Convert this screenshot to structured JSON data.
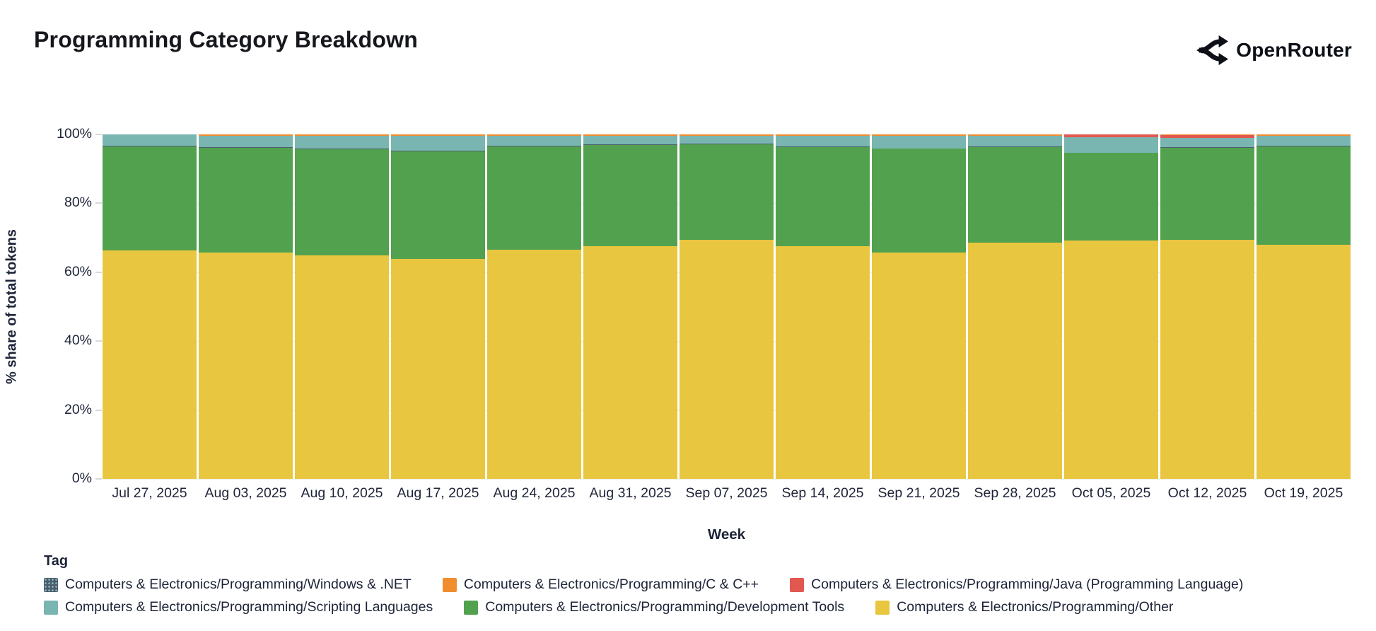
{
  "header": {
    "title": "Programming Category Breakdown",
    "logo_text": "OpenRouter"
  },
  "colors": {
    "title_text": "#15171c",
    "axis_text": "#1e2438",
    "other_yellow": "#e9c63f",
    "dev_tools_green": "#52a14e",
    "scripting_teal": "#79b6b1",
    "java_red": "#e25750",
    "c_cpp_orange": "#f28d2d",
    "windows_slate": "#4e5c6e"
  },
  "legend": {
    "title": "Tag",
    "items": [
      {
        "label": "Computers & Electronics/Programming/Windows & .NET",
        "color": "#4e5c6e",
        "pattern": "dots"
      },
      {
        "label": "Computers & Electronics/Programming/C & C++",
        "color": "#f28d2d"
      },
      {
        "label": "Computers & Electronics/Programming/Java (Programming Language)",
        "color": "#e25750"
      },
      {
        "label": "Computers & Electronics/Programming/Scripting Languages",
        "color": "#79b6b1"
      },
      {
        "label": "Computers & Electronics/Programming/Development Tools",
        "color": "#52a14e"
      },
      {
        "label": "Computers & Electronics/Programming/Other",
        "color": "#e9c63f"
      }
    ]
  },
  "chart_data": {
    "type": "bar",
    "variant": "100pct-stacked",
    "title": "Programming Category Breakdown",
    "xlabel": "Week",
    "ylabel": "% share of total tokens",
    "ylim": [
      0,
      100
    ],
    "yticks": [
      0,
      20,
      40,
      60,
      80,
      100
    ],
    "ytick_suffix": "%",
    "grid": "horizontal-faint",
    "legend_position": "bottom-left",
    "categories": [
      "Jul 27, 2025",
      "Aug 03, 2025",
      "Aug 10, 2025",
      "Aug 17, 2025",
      "Aug 24, 2025",
      "Aug 31, 2025",
      "Sep 07, 2025",
      "Sep 14, 2025",
      "Sep 21, 2025",
      "Sep 28, 2025",
      "Oct 05, 2025",
      "Oct 12, 2025",
      "Oct 19, 2025"
    ],
    "series": [
      {
        "name": "Computers & Electronics/Programming/Other",
        "color": "#e9c63f",
        "values": [
          66.3,
          65.8,
          64.9,
          63.8,
          66.6,
          67.6,
          69.5,
          67.5,
          65.8,
          68.5,
          69.3,
          69.5,
          68.0
        ]
      },
      {
        "name": "Computers & Electronics/Programming/Development Tools",
        "color": "#52a14e",
        "values": [
          30.3,
          30.4,
          30.8,
          31.3,
          29.9,
          29.4,
          27.6,
          28.9,
          30.0,
          27.8,
          25.3,
          26.7,
          28.5
        ]
      },
      {
        "name": "Computers & Electronics/Programming/Windows & .NET",
        "color": "#4e5c6e",
        "pattern": "dots",
        "values": [
          0.15,
          0.15,
          0.15,
          0.15,
          0.15,
          0.15,
          0.15,
          0.15,
          0.15,
          0.15,
          0.15,
          0.15,
          0.15
        ]
      },
      {
        "name": "Computers & Electronics/Programming/Scripting Languages",
        "color": "#79b6b1",
        "values": [
          3.25,
          3.25,
          3.85,
          4.35,
          3.05,
          2.5,
          2.45,
          3.15,
          3.65,
          3.25,
          4.35,
          2.7,
          3.0
        ]
      },
      {
        "name": "Computers & Electronics/Programming/Java (Programming Language)",
        "color": "#e25750",
        "values": [
          0,
          0,
          0,
          0,
          0,
          0,
          0,
          0,
          0,
          0,
          0.9,
          0.8,
          0
        ]
      },
      {
        "name": "Computers & Electronics/Programming/C & C++",
        "color": "#f28d2d",
        "values": [
          0,
          0.4,
          0.3,
          0.4,
          0.3,
          0.35,
          0.3,
          0.3,
          0.4,
          0.3,
          0,
          0.15,
          0.35
        ]
      }
    ]
  }
}
